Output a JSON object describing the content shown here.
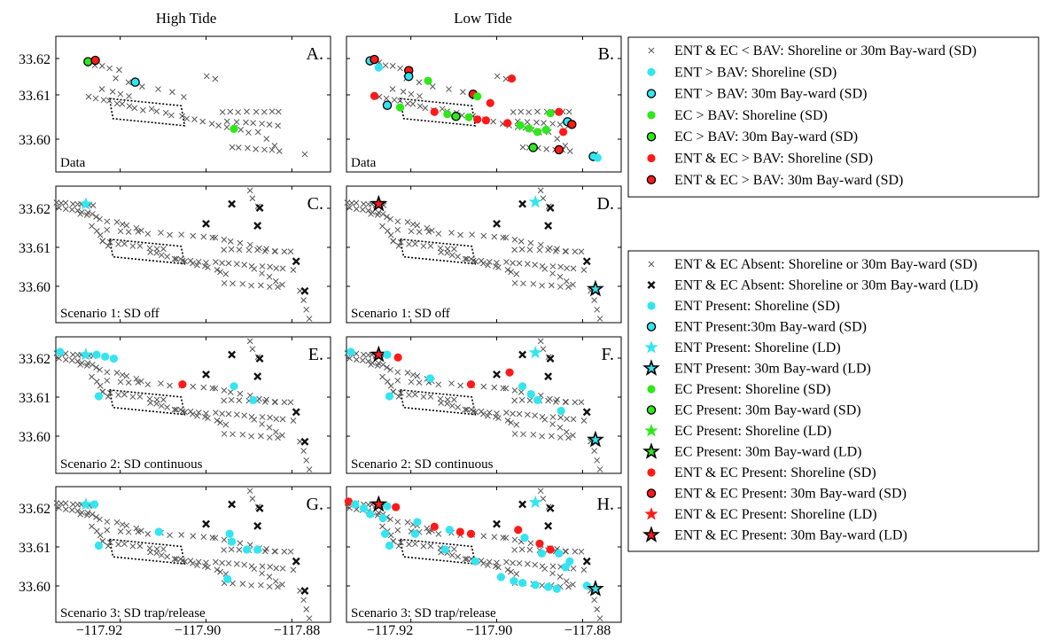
{
  "columns": [
    "High Tide",
    "Low Tide"
  ],
  "y_ticks": [
    "33.62",
    "33.61",
    "33.60"
  ],
  "x_ticks": [
    "−117.92",
    "−117.90",
    "−117.88"
  ],
  "colors": {
    "ent": "#33e5f0",
    "ec": "#2ee81a",
    "both": "#ff1a1a",
    "cross_light": "#555555",
    "cross_dark": "#111111"
  },
  "legends": [
    {
      "entries": [
        {
          "label": "ENT & EC < BAV: Shoreline or 30m Bay-ward (SD)",
          "symbol": "cross",
          "color": "cross_light"
        },
        {
          "label": "ENT > BAV: Shoreline (SD)",
          "symbol": "dot",
          "color": "ent"
        },
        {
          "label": "ENT > BAV: 30m Bay-ward (SD)",
          "symbol": "dot-ring",
          "color": "ent"
        },
        {
          "label": "EC > BAV: Shoreline (SD)",
          "symbol": "dot",
          "color": "ec"
        },
        {
          "label": "EC > BAV: 30m Bay-ward (SD)",
          "symbol": "dot-ring",
          "color": "ec"
        },
        {
          "label": "ENT & EC > BAV: Shoreline (SD)",
          "symbol": "dot",
          "color": "both"
        },
        {
          "label": "ENT & EC > BAV: 30m Bay-ward (SD)",
          "symbol": "dot-ring",
          "color": "both"
        }
      ]
    },
    {
      "entries": [
        {
          "label": "ENT & EC Absent: Shoreline or 30m Bay-ward (SD)",
          "symbol": "cross",
          "color": "cross_light"
        },
        {
          "label": "ENT & EC Absent: Shoreline or 30m Bay-ward (LD)",
          "symbol": "cross-bold",
          "color": "cross_dark"
        },
        {
          "label": "ENT Present: Shoreline (SD)",
          "symbol": "dot",
          "color": "ent"
        },
        {
          "label": "ENT Present:30m Bay-ward (SD)",
          "symbol": "dot-ring",
          "color": "ent"
        },
        {
          "label": "ENT Present: Shoreline (LD)",
          "symbol": "star",
          "color": "ent"
        },
        {
          "label": "ENT Present: 30m Bay-ward (LD)",
          "symbol": "star-ring",
          "color": "ent"
        },
        {
          "label": "EC Present: Shoreline (SD)",
          "symbol": "dot",
          "color": "ec"
        },
        {
          "label": "EC Present: 30m Bay-ward (SD)",
          "symbol": "dot-ring",
          "color": "ec"
        },
        {
          "label": "EC Present: Shoreline (LD)",
          "symbol": "star",
          "color": "ec"
        },
        {
          "label": "EC Present: 30m Bay-ward (LD)",
          "symbol": "star-ring",
          "color": "ec"
        },
        {
          "label": "ENT & EC Present: Shoreline (SD)",
          "symbol": "dot",
          "color": "both"
        },
        {
          "label": "ENT & EC Present: 30m Bay-ward (SD)",
          "symbol": "dot-ring",
          "color": "both"
        },
        {
          "label": "ENT & EC Present: Shoreline (LD)",
          "symbol": "star",
          "color": "both"
        },
        {
          "label": "ENT & EC Present: 30m Bay-ward (LD)",
          "symbol": "star-ring",
          "color": "both"
        }
      ]
    }
  ],
  "chart_data": [
    {
      "type": "scatter",
      "panel": "A",
      "column": "High Tide",
      "row": 0,
      "caption": "Data",
      "xlim": [
        -117.935,
        -117.871
      ],
      "ylim": [
        33.595,
        33.6255
      ],
      "base_crosses": "sd",
      "points": [
        {
          "x": -117.9275,
          "y": 33.6198,
          "symbol": "dot-ring",
          "color": "ec"
        },
        {
          "x": -117.9258,
          "y": 33.6201,
          "symbol": "dot-ring",
          "color": "both"
        },
        {
          "x": -117.9165,
          "y": 33.6152,
          "symbol": "dot-ring",
          "color": "ent"
        },
        {
          "x": -117.8935,
          "y": 33.6047,
          "symbol": "dot",
          "color": "ec"
        }
      ]
    },
    {
      "type": "scatter",
      "panel": "B",
      "column": "Low Tide",
      "row": 0,
      "caption": "Data",
      "xlim": [
        -117.935,
        -117.871
      ],
      "ylim": [
        33.595,
        33.6255
      ],
      "base_crosses": "sd",
      "points": [
        {
          "x": -117.9295,
          "y": 33.62,
          "symbol": "dot-ring",
          "color": "ent"
        },
        {
          "x": -117.9285,
          "y": 33.6203,
          "symbol": "dot-ring",
          "color": "both"
        },
        {
          "x": -117.9275,
          "y": 33.6185,
          "symbol": "dot",
          "color": "ent"
        },
        {
          "x": -117.9205,
          "y": 33.6178,
          "symbol": "dot-ring",
          "color": "both"
        },
        {
          "x": -117.9205,
          "y": 33.6165,
          "symbol": "dot-ring",
          "color": "ent"
        },
        {
          "x": -117.916,
          "y": 33.6155,
          "symbol": "dot",
          "color": "ec"
        },
        {
          "x": -117.9285,
          "y": 33.6121,
          "symbol": "dot",
          "color": "both"
        },
        {
          "x": -117.9255,
          "y": 33.61,
          "symbol": "dot-ring",
          "color": "ent"
        },
        {
          "x": -117.9225,
          "y": 33.6095,
          "symbol": "dot",
          "color": "ec"
        },
        {
          "x": -117.9145,
          "y": 33.6085,
          "symbol": "dot",
          "color": "both"
        },
        {
          "x": -117.9115,
          "y": 33.608,
          "symbol": "dot",
          "color": "ec"
        },
        {
          "x": -117.9095,
          "y": 33.6075,
          "symbol": "dot-ring",
          "color": "ec"
        },
        {
          "x": -117.9065,
          "y": 33.6073,
          "symbol": "dot",
          "color": "ec"
        },
        {
          "x": -117.9045,
          "y": 33.6068,
          "symbol": "dot",
          "color": "both"
        },
        {
          "x": -117.9025,
          "y": 33.6066,
          "symbol": "dot",
          "color": "both"
        },
        {
          "x": -117.9055,
          "y": 33.6125,
          "symbol": "dot-ring",
          "color": "both"
        },
        {
          "x": -117.9045,
          "y": 33.612,
          "symbol": "dot",
          "color": "ec"
        },
        {
          "x": -117.9015,
          "y": 33.6105,
          "symbol": "dot",
          "color": "both"
        },
        {
          "x": -117.8965,
          "y": 33.616,
          "symbol": "dot",
          "color": "both"
        },
        {
          "x": -117.8975,
          "y": 33.606,
          "symbol": "dot",
          "color": "both"
        },
        {
          "x": -117.8945,
          "y": 33.6055,
          "symbol": "dot",
          "color": "ec"
        },
        {
          "x": -117.8925,
          "y": 33.6048,
          "symbol": "dot",
          "color": "ec"
        },
        {
          "x": -117.8905,
          "y": 33.604,
          "symbol": "dot",
          "color": "ec"
        },
        {
          "x": -117.8885,
          "y": 33.6045,
          "symbol": "dot",
          "color": "ec"
        },
        {
          "x": -117.8915,
          "y": 33.6005,
          "symbol": "dot-ring",
          "color": "ec"
        },
        {
          "x": -117.8875,
          "y": 33.6082,
          "symbol": "dot",
          "color": "ec"
        },
        {
          "x": -117.8855,
          "y": 33.6085,
          "symbol": "dot",
          "color": "both"
        },
        {
          "x": -117.8835,
          "y": 33.6063,
          "symbol": "dot-ring",
          "color": "ent"
        },
        {
          "x": -117.8825,
          "y": 33.6057,
          "symbol": "dot-ring",
          "color": "both"
        },
        {
          "x": -117.8845,
          "y": 33.604,
          "symbol": "dot",
          "color": "both"
        },
        {
          "x": -117.8855,
          "y": 33.6,
          "symbol": "dot-ring",
          "color": "both"
        },
        {
          "x": -117.8775,
          "y": 33.5985,
          "symbol": "dot-ring",
          "color": "ent"
        },
        {
          "x": -117.8765,
          "y": 33.5982,
          "symbol": "dot",
          "color": "ent"
        }
      ]
    },
    {
      "type": "scatter",
      "panel": "C",
      "column": "High Tide",
      "row": 1,
      "caption": "Scenario 1: SD off",
      "xlim": [
        -117.935,
        -117.871
      ],
      "ylim": [
        33.5905,
        33.625
      ],
      "base_crosses": "model",
      "points": [
        {
          "x": -117.928,
          "y": 33.6205,
          "symbol": "star",
          "color": "ent"
        }
      ]
    },
    {
      "type": "scatter",
      "panel": "D",
      "column": "Low Tide",
      "row": 1,
      "caption": "Scenario 1: SD off",
      "xlim": [
        -117.935,
        -117.871
      ],
      "ylim": [
        33.5905,
        33.625
      ],
      "base_crosses": "model",
      "points": [
        {
          "x": -117.9275,
          "y": 33.6205,
          "symbol": "star-ring",
          "color": "both"
        },
        {
          "x": -117.891,
          "y": 33.621,
          "symbol": "star",
          "color": "ent"
        },
        {
          "x": -117.877,
          "y": 33.599,
          "symbol": "star-ring",
          "color": "ent"
        }
      ]
    },
    {
      "type": "scatter",
      "panel": "E",
      "column": "High Tide",
      "row": 2,
      "caption": "Scenario 2: SD continuous",
      "xlim": [
        -117.935,
        -117.871
      ],
      "ylim": [
        33.5905,
        33.625
      ],
      "base_crosses": "model",
      "points": [
        {
          "x": -117.934,
          "y": 33.6212,
          "symbol": "dot",
          "color": "ent"
        },
        {
          "x": -117.928,
          "y": 33.6205,
          "symbol": "star",
          "color": "ent"
        },
        {
          "x": -117.9255,
          "y": 33.6205,
          "symbol": "dot",
          "color": "ent"
        },
        {
          "x": -117.9235,
          "y": 33.62,
          "symbol": "dot",
          "color": "ent"
        },
        {
          "x": -117.9215,
          "y": 33.6195,
          "symbol": "dot",
          "color": "ent"
        },
        {
          "x": -117.925,
          "y": 33.61,
          "symbol": "dot",
          "color": "ent"
        },
        {
          "x": -117.9055,
          "y": 33.613,
          "symbol": "dot",
          "color": "both"
        },
        {
          "x": -117.8935,
          "y": 33.6125,
          "symbol": "dot",
          "color": "ent"
        },
        {
          "x": -117.889,
          "y": 33.609,
          "symbol": "dot",
          "color": "ent"
        }
      ]
    },
    {
      "type": "scatter",
      "panel": "F",
      "column": "Low Tide",
      "row": 2,
      "caption": "Scenario 2: SD continuous",
      "xlim": [
        -117.935,
        -117.871
      ],
      "ylim": [
        33.5905,
        33.625
      ],
      "base_crosses": "model",
      "points": [
        {
          "x": -117.934,
          "y": 33.6212,
          "symbol": "dot",
          "color": "ent"
        },
        {
          "x": -117.9275,
          "y": 33.6205,
          "symbol": "star-ring",
          "color": "both"
        },
        {
          "x": -117.9255,
          "y": 33.6205,
          "symbol": "dot",
          "color": "ent"
        },
        {
          "x": -117.923,
          "y": 33.6198,
          "symbol": "dot",
          "color": "both"
        },
        {
          "x": -117.9155,
          "y": 33.6145,
          "symbol": "dot",
          "color": "ent"
        },
        {
          "x": -117.925,
          "y": 33.61,
          "symbol": "dot",
          "color": "ent"
        },
        {
          "x": -117.906,
          "y": 33.613,
          "symbol": "dot",
          "color": "both"
        },
        {
          "x": -117.897,
          "y": 33.616,
          "symbol": "dot",
          "color": "both"
        },
        {
          "x": -117.894,
          "y": 33.6125,
          "symbol": "dot",
          "color": "ent"
        },
        {
          "x": -117.892,
          "y": 33.6105,
          "symbol": "dot",
          "color": "ent"
        },
        {
          "x": -117.8905,
          "y": 33.609,
          "symbol": "dot",
          "color": "ent"
        },
        {
          "x": -117.885,
          "y": 33.6063,
          "symbol": "dot",
          "color": "ent"
        },
        {
          "x": -117.891,
          "y": 33.621,
          "symbol": "star",
          "color": "ent"
        },
        {
          "x": -117.877,
          "y": 33.599,
          "symbol": "star-ring",
          "color": "ent"
        }
      ]
    },
    {
      "type": "scatter",
      "panel": "G",
      "column": "High Tide",
      "row": 3,
      "caption": "Scenario 3: SD trap/release",
      "xlim": [
        -117.935,
        -117.871
      ],
      "ylim": [
        33.5905,
        33.625
      ],
      "base_crosses": "model",
      "points": [
        {
          "x": -117.928,
          "y": 33.6205,
          "symbol": "star",
          "color": "ent"
        },
        {
          "x": -117.926,
          "y": 33.6205,
          "symbol": "dot",
          "color": "ent"
        },
        {
          "x": -117.925,
          "y": 33.61,
          "symbol": "dot",
          "color": "ent"
        },
        {
          "x": -117.911,
          "y": 33.6135,
          "symbol": "dot",
          "color": "ent"
        },
        {
          "x": -117.8945,
          "y": 33.613,
          "symbol": "dot",
          "color": "ent"
        },
        {
          "x": -117.894,
          "y": 33.611,
          "symbol": "dot",
          "color": "ent"
        },
        {
          "x": -117.8905,
          "y": 33.609,
          "symbol": "dot",
          "color": "ent"
        },
        {
          "x": -117.888,
          "y": 33.609,
          "symbol": "dot",
          "color": "ent"
        },
        {
          "x": -117.895,
          "y": 33.6015,
          "symbol": "dot",
          "color": "ent"
        }
      ]
    },
    {
      "type": "scatter",
      "panel": "H",
      "column": "Low Tide",
      "row": 3,
      "caption": "Scenario 3: SD trap/release",
      "xlim": [
        -117.935,
        -117.871
      ],
      "ylim": [
        33.5905,
        33.625
      ],
      "base_crosses": "model",
      "points": [
        {
          "x": -117.9345,
          "y": 33.6212,
          "symbol": "dot",
          "color": "both"
        },
        {
          "x": -117.933,
          "y": 33.6205,
          "symbol": "dot",
          "color": "ent"
        },
        {
          "x": -117.931,
          "y": 33.6195,
          "symbol": "dot",
          "color": "ent"
        },
        {
          "x": -117.9275,
          "y": 33.6205,
          "symbol": "star-ring",
          "color": "both"
        },
        {
          "x": -117.9255,
          "y": 33.62,
          "symbol": "dot",
          "color": "ent"
        },
        {
          "x": -117.9235,
          "y": 33.6198,
          "symbol": "dot",
          "color": "both"
        },
        {
          "x": -117.9295,
          "y": 33.618,
          "symbol": "dot",
          "color": "ent"
        },
        {
          "x": -117.9265,
          "y": 33.617,
          "symbol": "dot",
          "color": "ent"
        },
        {
          "x": -117.9185,
          "y": 33.616,
          "symbol": "dot",
          "color": "ent"
        },
        {
          "x": -117.9145,
          "y": 33.6148,
          "symbol": "dot",
          "color": "both"
        },
        {
          "x": -117.911,
          "y": 33.614,
          "symbol": "dot",
          "color": "ent"
        },
        {
          "x": -117.9085,
          "y": 33.6135,
          "symbol": "dot",
          "color": "both"
        },
        {
          "x": -117.906,
          "y": 33.613,
          "symbol": "dot",
          "color": "both"
        },
        {
          "x": -117.926,
          "y": 33.613,
          "symbol": "dot",
          "color": "ent"
        },
        {
          "x": -117.925,
          "y": 33.61,
          "symbol": "dot",
          "color": "ent"
        },
        {
          "x": -117.919,
          "y": 33.613,
          "symbol": "dot",
          "color": "ent"
        },
        {
          "x": -117.912,
          "y": 33.609,
          "symbol": "dot",
          "color": "ent"
        },
        {
          "x": -117.905,
          "y": 33.606,
          "symbol": "dot",
          "color": "ent"
        },
        {
          "x": -117.891,
          "y": 33.621,
          "symbol": "star",
          "color": "ent"
        },
        {
          "x": -117.895,
          "y": 33.614,
          "symbol": "dot",
          "color": "both"
        },
        {
          "x": -117.8935,
          "y": 33.612,
          "symbol": "dot",
          "color": "ent"
        },
        {
          "x": -117.89,
          "y": 33.6105,
          "symbol": "dot",
          "color": "both"
        },
        {
          "x": -117.8875,
          "y": 33.609,
          "symbol": "dot",
          "color": "both"
        },
        {
          "x": -117.8895,
          "y": 33.608,
          "symbol": "dot",
          "color": "ent"
        },
        {
          "x": -117.8855,
          "y": 33.608,
          "symbol": "dot",
          "color": "ent"
        },
        {
          "x": -117.883,
          "y": 33.606,
          "symbol": "dot",
          "color": "ent"
        },
        {
          "x": -117.884,
          "y": 33.6045,
          "symbol": "dot",
          "color": "ent"
        },
        {
          "x": -117.899,
          "y": 33.602,
          "symbol": "dot",
          "color": "ent"
        },
        {
          "x": -117.896,
          "y": 33.601,
          "symbol": "dot",
          "color": "ent"
        },
        {
          "x": -117.894,
          "y": 33.6005,
          "symbol": "dot",
          "color": "ent"
        },
        {
          "x": -117.891,
          "y": 33.6,
          "symbol": "dot",
          "color": "ent"
        },
        {
          "x": -117.888,
          "y": 33.5995,
          "symbol": "dot",
          "color": "ent"
        },
        {
          "x": -117.886,
          "y": 33.599,
          "symbol": "dot",
          "color": "ent"
        },
        {
          "x": -117.879,
          "y": 33.5998,
          "symbol": "dot",
          "color": "ent"
        },
        {
          "x": -117.877,
          "y": 33.599,
          "symbol": "star-ring",
          "color": "ent"
        }
      ]
    }
  ]
}
